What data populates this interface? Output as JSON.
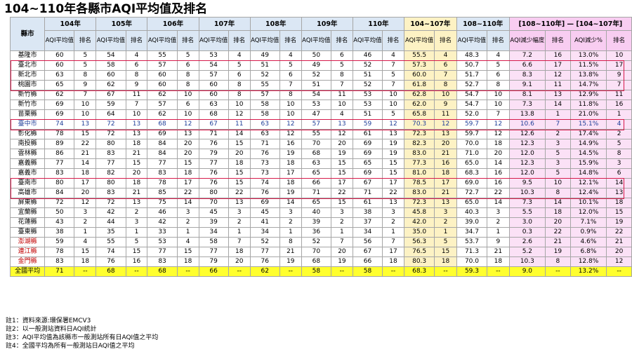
{
  "title": "104~110年各縣市AQI平均值及排名",
  "header": {
    "county": "縣市",
    "years": [
      "104年",
      "105年",
      "106年",
      "107年",
      "108年",
      "109年",
      "110年",
      "104~107年",
      "108~110年",
      "[108~110年] — [104~107年]"
    ],
    "sub_avg": "AQI平均值",
    "sub_rank": "排名",
    "sub_decrease": "AQI減少幅度",
    "sub_decrease_pct": "AQI減少%"
  },
  "rows": [
    {
      "county": "基隆市",
      "v": [
        "60",
        "5",
        "54",
        "4",
        "55",
        "5",
        "53",
        "4",
        "49",
        "4",
        "50",
        "6",
        "46",
        "4",
        "55.5",
        "4",
        "48.3",
        "4",
        "7.2",
        "16",
        "13.0%",
        "10"
      ]
    },
    {
      "county": "臺北市",
      "v": [
        "60",
        "5",
        "58",
        "6",
        "57",
        "6",
        "54",
        "5",
        "51",
        "5",
        "49",
        "5",
        "52",
        "7",
        "57.3",
        "6",
        "50.7",
        "5",
        "6.6",
        "17",
        "11.5%",
        "17"
      ]
    },
    {
      "county": "新北市",
      "v": [
        "63",
        "8",
        "60",
        "8",
        "60",
        "8",
        "57",
        "6",
        "52",
        "6",
        "52",
        "8",
        "51",
        "5",
        "60.0",
        "7",
        "51.7",
        "6",
        "8.3",
        "12",
        "13.8%",
        "9"
      ]
    },
    {
      "county": "桃園市",
      "v": [
        "65",
        "9",
        "62",
        "9",
        "60",
        "8",
        "60",
        "8",
        "55",
        "7",
        "51",
        "7",
        "52",
        "7",
        "61.8",
        "8",
        "52.7",
        "8",
        "9.1",
        "11",
        "14.7%",
        "7"
      ]
    },
    {
      "county": "新竹縣",
      "v": [
        "62",
        "7",
        "67",
        "11",
        "62",
        "10",
        "60",
        "8",
        "57",
        "8",
        "54",
        "11",
        "53",
        "10",
        "62.8",
        "10",
        "54.7",
        "10",
        "8.1",
        "13",
        "12.9%",
        "11"
      ]
    },
    {
      "county": "新竹市",
      "v": [
        "69",
        "10",
        "59",
        "7",
        "57",
        "6",
        "63",
        "10",
        "58",
        "10",
        "53",
        "10",
        "53",
        "10",
        "62.0",
        "9",
        "54.7",
        "10",
        "7.3",
        "14",
        "11.8%",
        "16"
      ]
    },
    {
      "county": "苗栗縣",
      "v": [
        "69",
        "10",
        "64",
        "10",
        "62",
        "10",
        "68",
        "12",
        "58",
        "10",
        "47",
        "4",
        "51",
        "5",
        "65.8",
        "11",
        "52.0",
        "7",
        "13.8",
        "1",
        "21.0%",
        "1"
      ]
    },
    {
      "county": "臺中市",
      "v": [
        "74",
        "13",
        "72",
        "13",
        "68",
        "12",
        "67",
        "11",
        "63",
        "12",
        "57",
        "13",
        "59",
        "12",
        "70.3",
        "12",
        "59.7",
        "12",
        "10.6",
        "7",
        "15.1%",
        "4"
      ]
    },
    {
      "county": "彰化縣",
      "v": [
        "78",
        "15",
        "72",
        "13",
        "69",
        "13",
        "71",
        "14",
        "63",
        "12",
        "55",
        "12",
        "61",
        "13",
        "72.3",
        "13",
        "59.7",
        "12",
        "12.6",
        "2",
        "17.4%",
        "2"
      ]
    },
    {
      "county": "南投縣",
      "v": [
        "89",
        "22",
        "80",
        "18",
        "84",
        "20",
        "76",
        "15",
        "71",
        "16",
        "70",
        "20",
        "69",
        "19",
        "82.3",
        "20",
        "70.0",
        "18",
        "12.3",
        "3",
        "14.9%",
        "5"
      ]
    },
    {
      "county": "雲林縣",
      "v": [
        "86",
        "21",
        "83",
        "21",
        "84",
        "20",
        "79",
        "20",
        "76",
        "19",
        "68",
        "19",
        "69",
        "19",
        "83.0",
        "21",
        "71.0",
        "20",
        "12.0",
        "5",
        "14.5%",
        "8"
      ]
    },
    {
      "county": "嘉義縣",
      "v": [
        "77",
        "14",
        "77",
        "15",
        "77",
        "15",
        "77",
        "18",
        "73",
        "18",
        "63",
        "15",
        "65",
        "15",
        "77.3",
        "16",
        "65.0",
        "14",
        "12.3",
        "3",
        "15.9%",
        "3"
      ]
    },
    {
      "county": "嘉義市",
      "v": [
        "83",
        "18",
        "82",
        "20",
        "83",
        "18",
        "76",
        "15",
        "73",
        "17",
        "65",
        "15",
        "69",
        "15",
        "81.0",
        "18",
        "68.3",
        "16",
        "12.0",
        "5",
        "14.8%",
        "6"
      ]
    },
    {
      "county": "臺南市",
      "v": [
        "80",
        "17",
        "80",
        "18",
        "78",
        "17",
        "76",
        "15",
        "74",
        "18",
        "66",
        "17",
        "67",
        "17",
        "78.5",
        "17",
        "69.0",
        "16",
        "9.5",
        "10",
        "12.1%",
        "14"
      ]
    },
    {
      "county": "高雄市",
      "v": [
        "84",
        "20",
        "83",
        "21",
        "85",
        "22",
        "80",
        "22",
        "76",
        "19",
        "71",
        "22",
        "71",
        "22",
        "83.0",
        "21",
        "72.7",
        "22",
        "10.3",
        "8",
        "12.4%",
        "13"
      ]
    },
    {
      "county": "屏東縣",
      "v": [
        "72",
        "12",
        "72",
        "13",
        "75",
        "14",
        "70",
        "13",
        "69",
        "14",
        "65",
        "15",
        "61",
        "13",
        "72.3",
        "13",
        "65.0",
        "14",
        "7.3",
        "14",
        "10.1%",
        "18"
      ]
    },
    {
      "county": "宜蘭縣",
      "v": [
        "50",
        "3",
        "42",
        "2",
        "46",
        "3",
        "45",
        "3",
        "45",
        "3",
        "40",
        "3",
        "38",
        "3",
        "45.8",
        "3",
        "40.3",
        "3",
        "5.5",
        "18",
        "12.0%",
        "15"
      ]
    },
    {
      "county": "花蓮縣",
      "v": [
        "43",
        "2",
        "44",
        "3",
        "42",
        "2",
        "39",
        "2",
        "41",
        "2",
        "39",
        "2",
        "37",
        "2",
        "42.0",
        "2",
        "39.0",
        "2",
        "3.0",
        "20",
        "7.1%",
        "19"
      ]
    },
    {
      "county": "臺東縣",
      "v": [
        "38",
        "1",
        "35",
        "1",
        "33",
        "1",
        "34",
        "1",
        "34",
        "1",
        "36",
        "1",
        "34",
        "1",
        "35.0",
        "1",
        "34.7",
        "1",
        "0.3",
        "22",
        "0.9%",
        "22"
      ]
    },
    {
      "county": "澎湖縣",
      "v": [
        "59",
        "4",
        "55",
        "5",
        "53",
        "4",
        "58",
        "7",
        "52",
        "8",
        "52",
        "7",
        "56",
        "7",
        "56.3",
        "5",
        "53.7",
        "9",
        "2.6",
        "21",
        "4.6%",
        "21"
      ]
    },
    {
      "county": "連江縣",
      "v": [
        "78",
        "15",
        "74",
        "15",
        "77",
        "15",
        "77",
        "18",
        "77",
        "21",
        "70",
        "20",
        "67",
        "17",
        "76.5",
        "15",
        "71.3",
        "21",
        "5.2",
        "19",
        "6.8%",
        "20"
      ]
    },
    {
      "county": "金門縣",
      "v": [
        "83",
        "18",
        "76",
        "16",
        "83",
        "18",
        "79",
        "20",
        "76",
        "19",
        "68",
        "19",
        "66",
        "18",
        "80.3",
        "18",
        "70.0",
        "18",
        "10.3",
        "8",
        "12.8%",
        "12"
      ]
    }
  ],
  "national": {
    "county": "全國平均",
    "v": [
      "71",
      "--",
      "68",
      "--",
      "68",
      "--",
      "66",
      "--",
      "62",
      "--",
      "58",
      "--",
      "58",
      "--",
      "68.3",
      "--",
      "59.3",
      "--",
      "9.0",
      "--",
      "13.2%",
      "--"
    ]
  },
  "notes": [
    "註1：資料來源:環保署EMCV3",
    "註2：以一般測站資料日AQI統計",
    "註3：AQI平均值為該縣市一般測站所有日AQI值之平均",
    "註4：全國平均為所有一般測站日AQI值之平均"
  ],
  "colors": {
    "blue_header": "#dbe7f4",
    "yellow": "#fdf2c4",
    "pink": "#f8cdf1",
    "highlight_border": "#d61a4a",
    "national_bg": "#ffff2e",
    "taichung_text": "#1f3f99",
    "red_county": "#c00000"
  }
}
